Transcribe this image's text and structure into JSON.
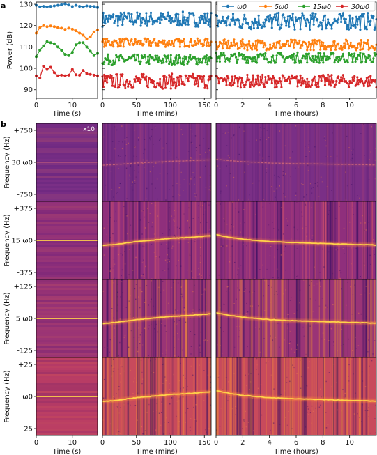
{
  "panel_labels": [
    "a",
    "b"
  ],
  "colors": {
    "s1": "#1f77b4",
    "s5": "#ff7f0e",
    "s15": "#2ca02c",
    "s30": "#d62728",
    "spec_bg": "#7a2a86",
    "spec_line": "#ffd24a"
  },
  "chart_data": [
    {
      "type": "line",
      "panel": "a",
      "ylabel": "Power (dB)",
      "ylim": [
        86,
        131
      ],
      "yticks": [
        "90",
        "100",
        "110",
        "120",
        "130"
      ],
      "legend": {
        "placement": "top-right",
        "entries": [
          "ω0",
          "5ω0",
          "15ω0",
          "30ω0"
        ]
      },
      "subplots": [
        {
          "xlabel": "Time (s)",
          "xlim": [
            0,
            17
          ],
          "xticks": [
            "0",
            "10"
          ],
          "series": [
            {
              "name": "ω0",
              "x": [
                0,
                1,
                2,
                3,
                4,
                5,
                6,
                7,
                8,
                9,
                10,
                11,
                12,
                13,
                14,
                15,
                16,
                17
              ],
              "values": [
                129.5,
                128.8,
                129,
                128.7,
                129,
                129.2,
                129.5,
                129.8,
                130.2,
                129.6,
                128.9,
                129.5,
                129,
                128.7,
                129.2,
                129,
                128.9,
                128.5
              ]
            },
            {
              "name": "5ω0",
              "x": [
                0,
                1,
                2,
                3,
                4,
                5,
                6,
                7,
                8,
                9,
                10,
                11,
                12,
                13,
                14,
                15,
                16,
                17
              ],
              "values": [
                116.5,
                119,
                120,
                119.5,
                119.8,
                119.5,
                119,
                118.8,
                118.2,
                118.8,
                118.3,
                117.6,
                116.5,
                115.5,
                113.8,
                114.8,
                117,
                118
              ]
            },
            {
              "name": "15ω0",
              "x": [
                0,
                1,
                2,
                3,
                4,
                5,
                6,
                7,
                8,
                9,
                10,
                11,
                12,
                13,
                14,
                15,
                16,
                17
              ],
              "values": [
                105.5,
                108.5,
                110.5,
                112.5,
                112,
                111.5,
                110,
                108.5,
                106.5,
                106,
                107.5,
                111,
                112,
                112,
                110,
                108,
                106,
                107
              ]
            },
            {
              "name": "30ω0",
              "x": [
                0,
                1,
                2,
                3,
                4,
                5,
                6,
                7,
                8,
                9,
                10,
                11,
                12,
                13,
                14,
                15,
                16,
                17
              ],
              "values": [
                96.5,
                95.5,
                101,
                99.5,
                100.5,
                98,
                96.5,
                96.8,
                96.5,
                96.8,
                99.5,
                97,
                96.8,
                99,
                97.5,
                97.2,
                96.8,
                96.5
              ]
            }
          ]
        },
        {
          "xlabel": "Time (mins)",
          "xlim": [
            0,
            160
          ],
          "xticks": [
            "0",
            "50",
            "100",
            "150"
          ],
          "series": [
            {
              "name": "ω0",
              "mean": 123,
              "spread": 3.5
            },
            {
              "name": "5ω0",
              "mean": 112,
              "spread": 2
            },
            {
              "name": "15ω0",
              "mean": 104,
              "spread": 2.5
            },
            {
              "name": "30ω0",
              "mean": 94,
              "spread": 3.5
            }
          ]
        },
        {
          "xlabel": "Time (hours)",
          "xlim": [
            0,
            12
          ],
          "xticks": [
            "0",
            "2",
            "4",
            "6",
            "8",
            "10"
          ],
          "series": [
            {
              "name": "ω0",
              "mean": 122,
              "spread": 4
            },
            {
              "name": "5ω0",
              "mean": 111,
              "spread": 2.5
            },
            {
              "name": "15ω0",
              "mean": 105,
              "spread": 2.5
            },
            {
              "name": "30ω0",
              "mean": 94,
              "spread": 3
            }
          ]
        }
      ]
    },
    {
      "type": "heatmap",
      "panel": "b",
      "annotation": "x10",
      "ylabel": "Frequency (Hz)",
      "rows": [
        {
          "harmonic": "30 ω0",
          "top": "+750",
          "bottom": "-750",
          "line_intensity": 0.35
        },
        {
          "harmonic": "15 ω0",
          "top": "+375",
          "bottom": "-375",
          "line_intensity": 0.9
        },
        {
          "harmonic": "5 ω0",
          "top": "+125",
          "bottom": "-125",
          "line_intensity": 0.9
        },
        {
          "harmonic": "ω0",
          "top": "+25",
          "bottom": "-25",
          "line_intensity": 1.0
        }
      ],
      "columns": [
        {
          "xlabel": "Time (s)",
          "xlim": [
            0,
            17
          ],
          "xticks": [
            "0",
            "10"
          ]
        },
        {
          "xlabel": "Time (mins)",
          "xlim": [
            0,
            160
          ],
          "xticks": [
            "0",
            "50",
            "100",
            "150"
          ]
        },
        {
          "xlabel": "Time (hours)",
          "xlim": [
            0,
            12
          ],
          "xticks": [
            "0",
            "2",
            "4",
            "6",
            "8",
            "10"
          ]
        }
      ],
      "drift": {
        "col0": [
          [
            0,
            0
          ],
          [
            17,
            0
          ]
        ],
        "col1": [
          [
            0,
            -0.13
          ],
          [
            20,
            -0.1
          ],
          [
            50,
            -0.03
          ],
          [
            70,
            0.0
          ],
          [
            100,
            0.05
          ],
          [
            130,
            0.08
          ],
          [
            160,
            0.12
          ]
        ],
        "col2": [
          [
            0,
            0.15
          ],
          [
            1,
            0.08
          ],
          [
            2,
            0.03
          ],
          [
            4,
            -0.03
          ],
          [
            6,
            -0.06
          ],
          [
            8,
            -0.08
          ],
          [
            10,
            -0.1
          ],
          [
            12,
            -0.12
          ]
        ]
      }
    }
  ]
}
